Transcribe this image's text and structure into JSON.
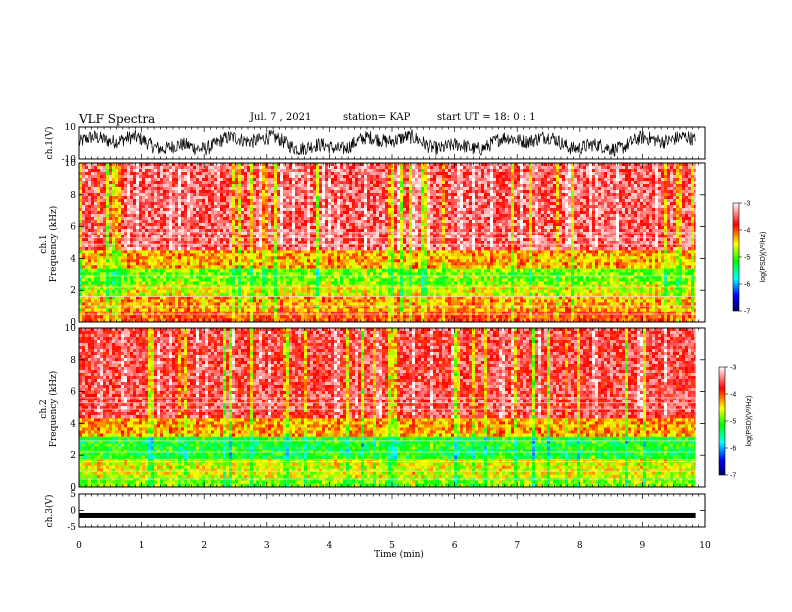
{
  "header": {
    "title": "VLF Spectra",
    "date": "Jul. 7 , 2021",
    "station": "station= KAP",
    "start": "start UT = 18: 0 : 1"
  },
  "chart_data": [
    {
      "type": "line",
      "id": "ch1_waveform",
      "ylabel": "ch.1(V)",
      "ylim": [
        -10,
        10
      ],
      "yticks": [
        "10",
        "-10"
      ],
      "xlim": [
        0,
        10
      ],
      "data_extent_min": [
        0,
        9.85
      ],
      "description_level": "signal oscillating roughly between -8 and 8 V"
    },
    {
      "type": "heatmap",
      "id": "ch1_spectrogram",
      "ylabel": "ch.1\nFrequency (kHz)",
      "ylim": [
        0,
        10
      ],
      "yticks": [
        "0",
        "2",
        "4",
        "6",
        "8",
        "10"
      ],
      "xlim": [
        0,
        10
      ],
      "data_extent_min": [
        0,
        9.85
      ],
      "bands_khz": [
        {
          "from": 0,
          "to": 0.8,
          "level": -4.0
        },
        {
          "from": 0.8,
          "to": 1.8,
          "level": -4.3
        },
        {
          "from": 1.8,
          "to": 2.4,
          "level": -4.6
        },
        {
          "from": 2.4,
          "to": 3.5,
          "level": -4.9
        },
        {
          "from": 3.5,
          "to": 4.7,
          "level": -4.3
        },
        {
          "from": 4.7,
          "to": 10,
          "level": -3.5
        }
      ]
    },
    {
      "type": "heatmap",
      "id": "ch2_spectrogram",
      "ylabel": "ch.2\nFrequency (kHz)",
      "ylim": [
        0,
        10
      ],
      "yticks": [
        "0",
        "2",
        "4",
        "6",
        "8",
        "10"
      ],
      "xlim": [
        0,
        10
      ],
      "data_extent_min": [
        0,
        9.85
      ],
      "bands_khz": [
        {
          "from": 0,
          "to": 0.6,
          "level": -4.9
        },
        {
          "from": 0.6,
          "to": 1.9,
          "level": -4.6
        },
        {
          "from": 1.9,
          "to": 3.3,
          "level": -5.2
        },
        {
          "from": 3.3,
          "to": 4.5,
          "level": -4.3
        },
        {
          "from": 4.5,
          "to": 10,
          "level": -3.6
        }
      ]
    },
    {
      "type": "line",
      "id": "ch3_waveform",
      "ylabel": "ch.3(V)",
      "ylim": [
        -5,
        5
      ],
      "yticks": [
        "5",
        "0",
        "-5"
      ],
      "xlim": [
        0,
        10
      ],
      "data_extent_min": [
        0,
        9.85
      ],
      "description_level": "nearly constant near -1.5 V"
    }
  ],
  "colorbar": {
    "label": "log(PSD)(V²/Hz)",
    "range": [
      -7,
      -3
    ],
    "ticks": [
      "-3",
      "-4",
      "-5",
      "-6",
      "-7"
    ],
    "colors": [
      "#000066",
      "#0000ff",
      "#00ffff",
      "#00ff00",
      "#ffff00",
      "#ff0000",
      "#ffffff"
    ]
  },
  "xaxis": {
    "label": "Time (min)",
    "ticks": [
      "0",
      "1",
      "2",
      "3",
      "4",
      "5",
      "6",
      "7",
      "8",
      "9",
      "10"
    ]
  }
}
